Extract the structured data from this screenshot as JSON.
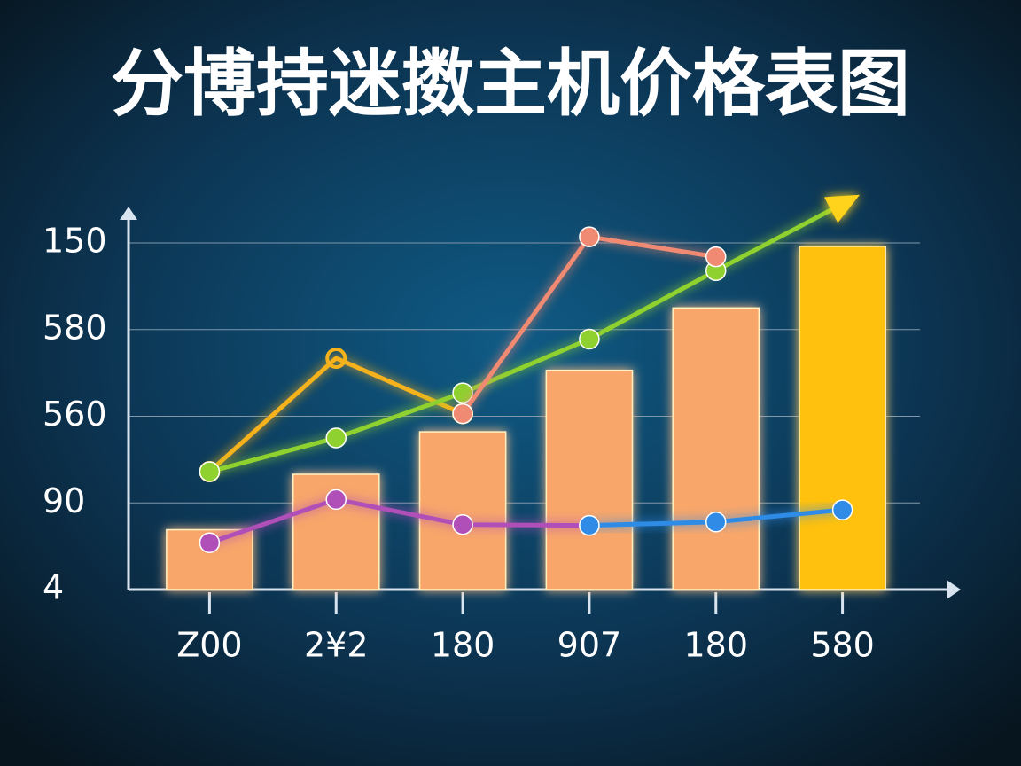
{
  "chart_data": {
    "type": "bar",
    "title": "分博持迷擞主机价格表图",
    "categories": [
      "Z00",
      "2¥2",
      "180",
      "907",
      "180",
      "580"
    ],
    "values": [
      0.69,
      1.33,
      1.82,
      2.53,
      3.25,
      3.96
    ],
    "colors": [
      "#f8a66b",
      "#f8a66b",
      "#f8a66b",
      "#f8a66b",
      "#f8a66b",
      "#ffc107"
    ],
    "series": [
      {
        "type": "line",
        "color": "#f5b21a",
        "hollow": true,
        "values": [
          1.36,
          2.67,
          2.03,
          null,
          null,
          null
        ]
      },
      {
        "type": "line",
        "color": "#8fd12e",
        "arrow": true,
        "values": [
          1.36,
          1.75,
          2.27,
          2.89,
          3.68,
          4.45
        ]
      },
      {
        "type": "line",
        "color": "#f08a72",
        "values": [
          null,
          null,
          2.03,
          4.07,
          3.84,
          null
        ]
      },
      {
        "type": "line",
        "color": "#b04fb8",
        "values": [
          0.54,
          1.04,
          0.75,
          0.74,
          null,
          null
        ]
      },
      {
        "type": "line",
        "color": "#2f8be6",
        "values": [
          null,
          null,
          null,
          0.74,
          0.78,
          0.92
        ]
      }
    ],
    "ylim": [
      0,
      4.5
    ],
    "yticks": [
      {
        "value": 0,
        "label": "4"
      },
      {
        "value": 1,
        "label": "90"
      },
      {
        "value": 2,
        "label": "560"
      },
      {
        "value": 3,
        "label": "580"
      },
      {
        "value": 4,
        "label": "150"
      }
    ],
    "grid": true
  }
}
